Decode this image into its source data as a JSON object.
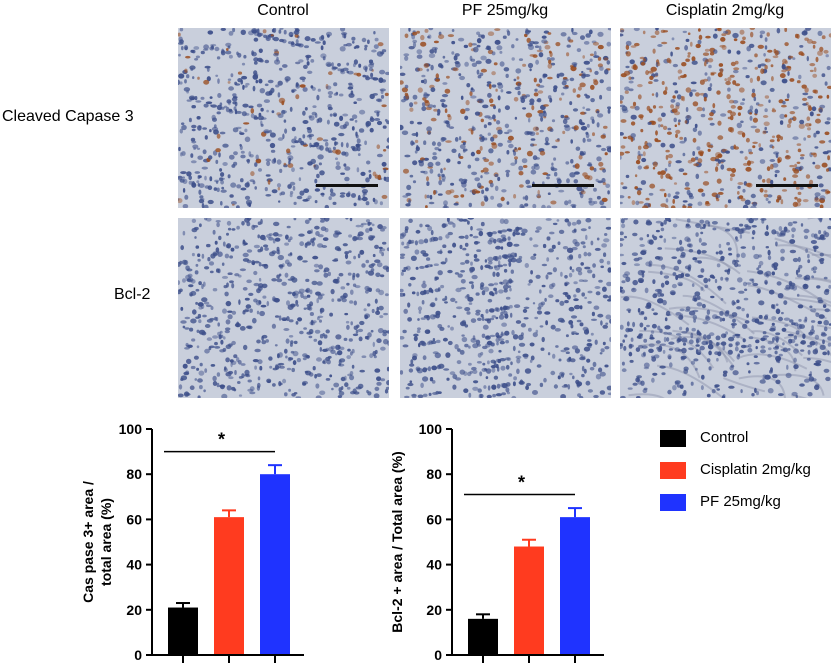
{
  "columns": [
    "Control",
    "PF 25mg/kg",
    "Cisplatin 2mg/kg"
  ],
  "rows": [
    "Cleaved Capase 3",
    "Bcl-2"
  ],
  "stain_colors": {
    "nuclei": "#3d4f8a",
    "positive": "#9a4e22",
    "background": "#c9cfdc"
  },
  "legend": [
    {
      "label": "Control",
      "color": "#000000"
    },
    {
      "label": "Cisplatin 2mg/kg",
      "color": "#ff3b1f"
    },
    {
      "label": "PF 25mg/kg",
      "color": "#1f33ff"
    }
  ],
  "chart_data": [
    {
      "type": "bar",
      "categories": [
        "Control",
        "Cisplatin 2mg/kg",
        "PF 25mg/kg"
      ],
      "values": [
        21,
        61,
        80
      ],
      "errors": [
        2,
        3,
        4
      ],
      "colors": [
        "#000000",
        "#ff3b1f",
        "#1f33ff"
      ],
      "ylabel_lines": [
        "Cas pase 3+ area /",
        "total area (%)"
      ],
      "ylim": [
        0,
        100
      ],
      "yticks": [
        "0",
        "20",
        "40",
        "60",
        "80",
        "100"
      ],
      "significance": "*"
    },
    {
      "type": "bar",
      "categories": [
        "Control",
        "Cisplatin 2mg/kg",
        "PF 25mg/kg"
      ],
      "values": [
        16,
        48,
        61
      ],
      "errors": [
        2,
        3,
        4
      ],
      "colors": [
        "#000000",
        "#ff3b1f",
        "#1f33ff"
      ],
      "ylabel_lines": [
        "Bcl-2 + area / Total area (%)"
      ],
      "ylim": [
        0,
        100
      ],
      "yticks": [
        "0",
        "20",
        "40",
        "60",
        "80",
        "100"
      ],
      "significance": "*"
    }
  ]
}
